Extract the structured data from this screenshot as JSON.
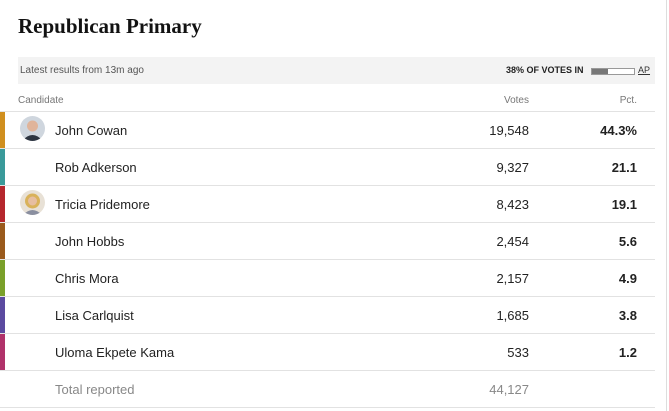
{
  "header": {
    "title": "Republican Primary",
    "updated": "Latest results from 13m ago",
    "reporting": {
      "value": 38,
      "label": "38% OF VOTES IN"
    },
    "source": "AP"
  },
  "table": {
    "columns": [
      "Candidate",
      "Votes",
      "Pct."
    ],
    "rows": [
      {
        "name": "John Cowan",
        "votes": "19,548",
        "pct": "44.3%",
        "color": "#d08f1f"
      },
      {
        "name": "Rob Adkerson",
        "votes": "9,327",
        "pct": "21.1",
        "color": "#3a9a9a"
      },
      {
        "name": "Tricia Pridemore",
        "votes": "8,423",
        "pct": "19.1",
        "color": "#b5272d"
      },
      {
        "name": "John Hobbs",
        "votes": "2,454",
        "pct": "5.6",
        "color": "#9a5a1c"
      },
      {
        "name": "Chris Mora",
        "votes": "2,157",
        "pct": "4.9",
        "color": "#7aa02a"
      },
      {
        "name": "Lisa Carlquist",
        "votes": "1,685",
        "pct": "3.8",
        "color": "#5b4aa0"
      },
      {
        "name": "Uloma Ekpete Kama",
        "votes": "533",
        "pct": "1.2",
        "color": "#b0326a"
      }
    ],
    "total": {
      "label": "Total reported",
      "votes": "44,127"
    }
  }
}
